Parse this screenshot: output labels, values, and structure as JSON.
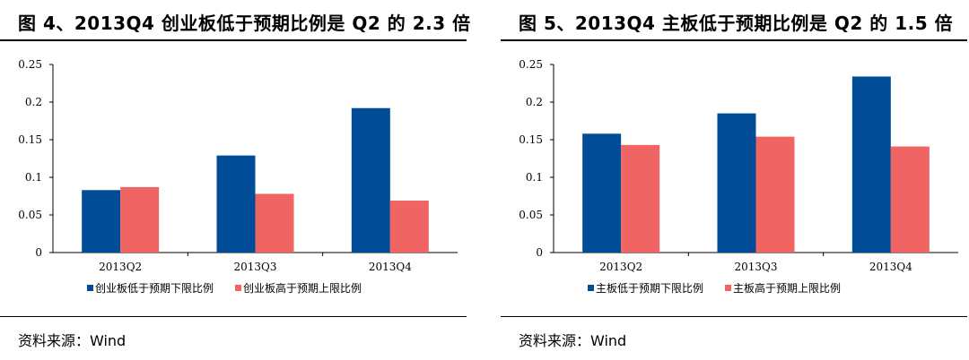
{
  "colors": {
    "primary": "#004c97",
    "secondary": "#f06464"
  },
  "panels": [
    {
      "title": "图 4、2013Q4 创业板低于预期比例是 Q2 的 2.3 倍",
      "source": "资料来源：Wind",
      "chart_data": {
        "type": "bar",
        "categories": [
          "2013Q2",
          "2013Q3",
          "2013Q4"
        ],
        "series": [
          {
            "name": "创业板低于预期下限比例",
            "values": [
              0.083,
              0.129,
              0.192
            ]
          },
          {
            "name": "创业板高于预期上限比例",
            "values": [
              0.087,
              0.078,
              0.069
            ]
          }
        ],
        "ylim": [
          0,
          0.25
        ],
        "yticks": [
          0,
          0.05,
          0.1,
          0.15,
          0.2,
          0.25
        ],
        "ytick_labels": [
          "0",
          "0.05",
          "0.1",
          "0.15",
          "0.2",
          "0.25"
        ],
        "legend": "bottom",
        "grid": false
      }
    },
    {
      "title": "图 5、2013Q4 主板低于预期比例是 Q2 的 1.5 倍",
      "source": "资料来源：Wind",
      "chart_data": {
        "type": "bar",
        "categories": [
          "2013Q2",
          "2013Q3",
          "2013Q4"
        ],
        "series": [
          {
            "name": "主板低于预期下限比例",
            "values": [
              0.158,
              0.185,
              0.234
            ]
          },
          {
            "name": "主板高于预期上限比例",
            "values": [
              0.143,
              0.154,
              0.141
            ]
          }
        ],
        "ylim": [
          0,
          0.25
        ],
        "yticks": [
          0,
          0.05,
          0.1,
          0.15,
          0.2,
          0.25
        ],
        "ytick_labels": [
          "0",
          "0.05",
          "0.1",
          "0.15",
          "0.2",
          "0.25"
        ],
        "legend": "bottom",
        "grid": false
      }
    }
  ]
}
